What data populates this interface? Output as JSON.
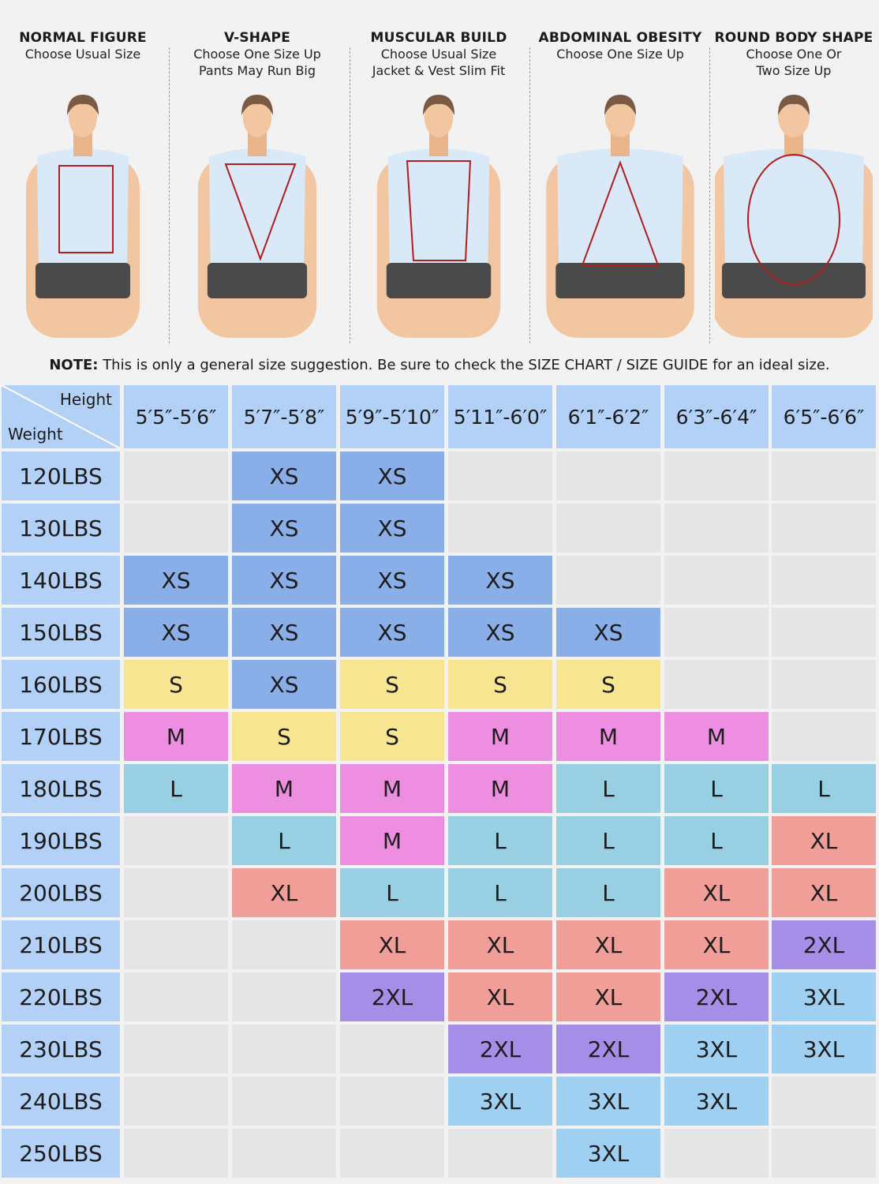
{
  "body_shapes": [
    {
      "title": "NORMAL FIGURE",
      "lines": [
        "Choose Usual Size"
      ],
      "overlay": "rectangle"
    },
    {
      "title": "V-SHAPE",
      "lines": [
        "Choose One Size Up",
        "Pants May Run Big"
      ],
      "overlay": "inverted-triangle"
    },
    {
      "title": "MUSCULAR BUILD",
      "lines": [
        "Choose Usual Size",
        "Jacket & Vest Slim Fit"
      ],
      "overlay": "trapezoid"
    },
    {
      "title": "ABDOMINAL OBESITY",
      "lines": [
        "Choose One Size Up"
      ],
      "overlay": "triangle"
    },
    {
      "title": "ROUND BODY SHAPE",
      "lines": [
        "Choose One Or",
        "Two Size Up"
      ],
      "overlay": "ellipse"
    }
  ],
  "note": {
    "label": "NOTE:",
    "text": " This is only a general size suggestion. Be sure to check the SIZE CHART / SIZE GUIDE for an ideal size."
  },
  "chart_data": {
    "type": "table",
    "corner": {
      "column_axis": "Height",
      "row_axis": "Weight"
    },
    "columns": [
      "5′5″-5′6″",
      "5′7″-5′8″",
      "5′9″-5′10″",
      "5′11″-6′0″",
      "6′1″-6′2″",
      "6′3″-6′4″",
      "6′5″-6′6″"
    ],
    "rows": [
      {
        "weight": "120LBS",
        "sizes": [
          "",
          "XS",
          "XS",
          "",
          "",
          "",
          ""
        ]
      },
      {
        "weight": "130LBS",
        "sizes": [
          "",
          "XS",
          "XS",
          "",
          "",
          "",
          ""
        ]
      },
      {
        "weight": "140LBS",
        "sizes": [
          "XS",
          "XS",
          "XS",
          "XS",
          "",
          "",
          ""
        ]
      },
      {
        "weight": "150LBS",
        "sizes": [
          "XS",
          "XS",
          "XS",
          "XS",
          "XS",
          "",
          ""
        ]
      },
      {
        "weight": "160LBS",
        "sizes": [
          "S",
          "XS",
          "S",
          "S",
          "S",
          "",
          ""
        ]
      },
      {
        "weight": "170LBS",
        "sizes": [
          "M",
          "S",
          "S",
          "M",
          "M",
          "M",
          ""
        ]
      },
      {
        "weight": "180LBS",
        "sizes": [
          "L",
          "M",
          "M",
          "M",
          "L",
          "L",
          "L"
        ]
      },
      {
        "weight": "190LBS",
        "sizes": [
          "",
          "L",
          "M",
          "L",
          "L",
          "L",
          "XL"
        ]
      },
      {
        "weight": "200LBS",
        "sizes": [
          "",
          "XL",
          "L",
          "L",
          "L",
          "XL",
          "XL"
        ]
      },
      {
        "weight": "210LBS",
        "sizes": [
          "",
          "",
          "XL",
          "XL",
          "XL",
          "XL",
          "2XL"
        ]
      },
      {
        "weight": "220LBS",
        "sizes": [
          "",
          "",
          "2XL",
          "XL",
          "XL",
          "2XL",
          "3XL"
        ]
      },
      {
        "weight": "230LBS",
        "sizes": [
          "",
          "",
          "",
          "2XL",
          "2XL",
          "3XL",
          "3XL"
        ]
      },
      {
        "weight": "240LBS",
        "sizes": [
          "",
          "",
          "",
          "3XL",
          "3XL",
          "3XL",
          ""
        ]
      },
      {
        "weight": "250LBS",
        "sizes": [
          "",
          "",
          "",
          "",
          "3XL",
          "",
          ""
        ]
      }
    ],
    "size_colors": {
      "XS": "#8aaee8",
      "S": "#f7e591",
      "M": "#ee8ee0",
      "L": "#99cfe3",
      "XL": "#f29e98",
      "2XL": "#a58ee8",
      "3XL": "#9fd0f2",
      "": "#e5e5e5"
    },
    "header_color": "#b3d1f7"
  }
}
